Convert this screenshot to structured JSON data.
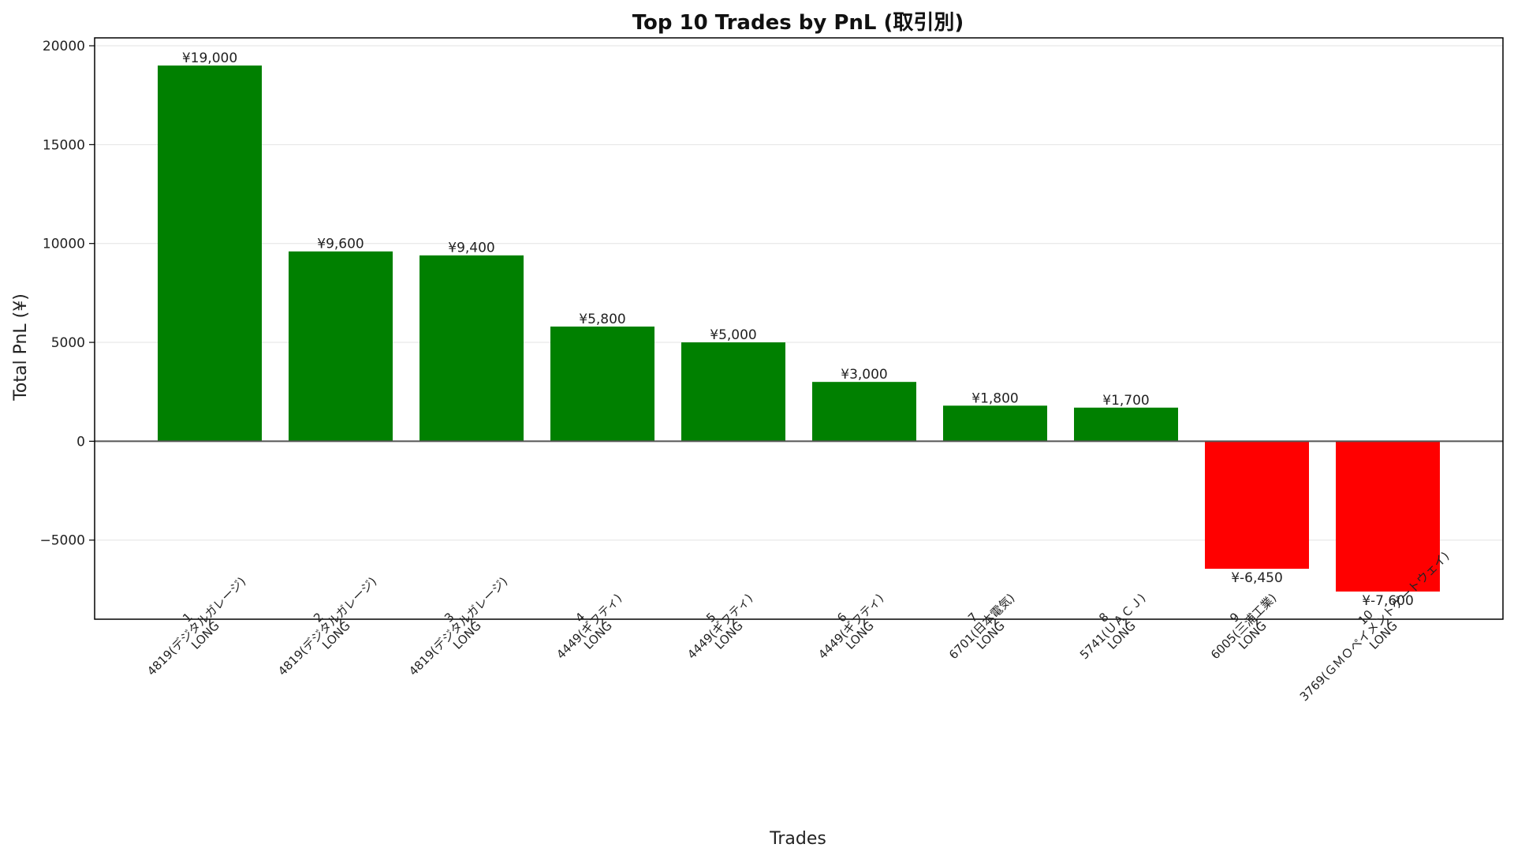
{
  "chart_data": {
    "type": "bar",
    "title": "Top 10 Trades by PnL (取引別)",
    "xlabel": "Trades",
    "ylabel": "Total PnL (¥)",
    "ylim": [
      -9000,
      20400
    ],
    "yticks": [
      -5000,
      0,
      5000,
      10000,
      15000,
      20000
    ],
    "ytick_labels": [
      "−5000",
      "0",
      "5000",
      "10000",
      "15000",
      "20000"
    ],
    "grid": true,
    "legend": "none",
    "colors": {
      "positive": "#008000",
      "negative": "#ff0000",
      "zero_line": "#555555"
    },
    "categories": [
      [
        "1",
        "4819(デジタルガレージ)",
        "LONG"
      ],
      [
        "2",
        "4819(デジタルガレージ)",
        "LONG"
      ],
      [
        "3",
        "4819(デジタルガレージ)",
        "LONG"
      ],
      [
        "4",
        "4449(ギフティ)",
        "LONG"
      ],
      [
        "5",
        "4449(ギフティ)",
        "LONG"
      ],
      [
        "6",
        "4449(ギフティ)",
        "LONG"
      ],
      [
        "7",
        "6701(日本電気)",
        "LONG"
      ],
      [
        "8",
        "5741(ＵＡＣＪ)",
        "LONG"
      ],
      [
        "9",
        "6005(三浦工業)",
        "LONG"
      ],
      [
        "10",
        "3769(ＧＭＯペイメントゲートウェイ)",
        "LONG"
      ]
    ],
    "values": [
      19000,
      9600,
      9400,
      5800,
      5000,
      3000,
      1800,
      1700,
      -6450,
      -7600
    ],
    "value_labels": [
      "¥19,000",
      "¥9,600",
      "¥9,400",
      "¥5,800",
      "¥5,000",
      "¥3,000",
      "¥1,800",
      "¥1,700",
      "¥-6,450",
      "¥-7,600"
    ]
  }
}
